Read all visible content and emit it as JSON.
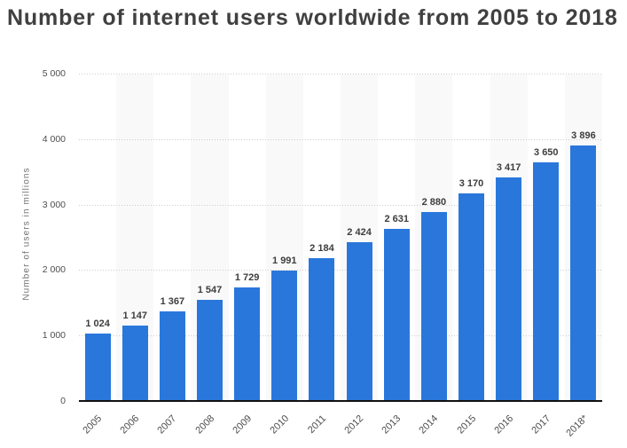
{
  "chart_data": {
    "type": "bar",
    "title": "Number of internet users worldwide from 2005 to 2018",
    "ylabel": "Number of users in millions",
    "xlabel": "",
    "categories": [
      "2005",
      "2006",
      "2007",
      "2008",
      "2009",
      "2010",
      "2011",
      "2012",
      "2013",
      "2014",
      "2015",
      "2016",
      "2017",
      "2018*"
    ],
    "values": [
      1024,
      1147,
      1367,
      1547,
      1729,
      1991,
      2184,
      2424,
      2631,
      2880,
      3170,
      3417,
      3650,
      3896
    ],
    "value_labels": [
      "1 024",
      "1 147",
      "1 367",
      "1 547",
      "1 729",
      "1 991",
      "2 184",
      "2 424",
      "2 631",
      "2 880",
      "3 170",
      "3 417",
      "3 650",
      "3 896"
    ],
    "ylim": [
      0,
      5000
    ],
    "y_ticks": [
      0,
      1000,
      2000,
      3000,
      4000,
      5000
    ],
    "y_tick_labels": [
      "0",
      "1 000",
      "2 000",
      "3 000",
      "4 000",
      "5 000"
    ],
    "grid": "dotted horizontal",
    "legend_position": "none",
    "bar_color": "#2a77dc",
    "stripe_color": "#f9f9f9",
    "striped_slots": "alternate starting at second category"
  }
}
